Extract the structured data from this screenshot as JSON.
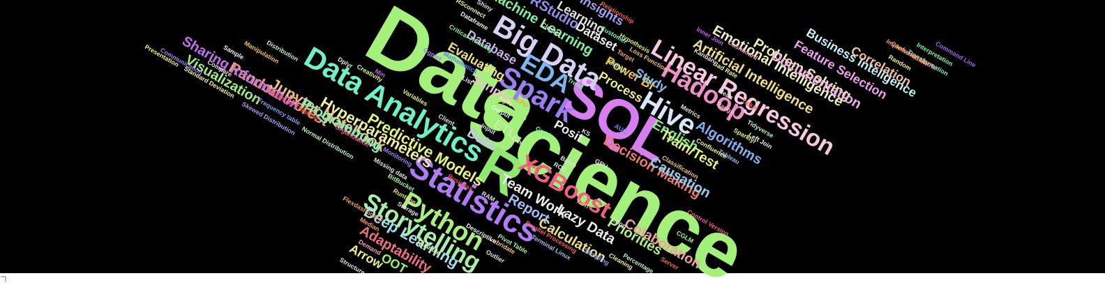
{
  "words": [
    "Data",
    "Science",
    "SQL",
    "R",
    "Statistics",
    "Data Analytics",
    "Big Data",
    "Spark",
    "EDA",
    "Hive",
    "Hadoop",
    "Linear Regression",
    "XGBoost",
    "Python",
    "Storytelling",
    "Decision Making",
    "Colaboration",
    "Priorities",
    "Lazy Data",
    "Calculation",
    "Report",
    "Team Work",
    "Predictive Models",
    "Hyperparameters",
    "Jupyter Notebook",
    "Random Forest",
    "Sharing Information",
    "Visualization",
    "Programming",
    "Deep Learning",
    "Adaptability",
    "Arrow",
    "OOT",
    "Machine Learning",
    "RStudio",
    "Learning",
    "Insights",
    "Dataset",
    "Database",
    "Evaluating",
    "Scripts",
    "ETL",
    "Posit",
    "Process",
    "Power BI",
    "Study",
    "Artificial Intelligence",
    "Emotional Intelligence",
    "Problem Solving",
    "Documentation",
    "Feature Selection",
    "Business Inteligence",
    "Correlation",
    "Algorithms",
    "English",
    "Train/Test",
    "Causation",
    "Data",
    "Relationship",
    "Hypothesis",
    "Customer",
    "Loss Function",
    "Kanban",
    "Dashboard",
    "Inner Join",
    "Bad Rate",
    "Mean",
    "Range",
    "Ticket",
    "Tidyverse",
    "Left Join",
    "Sparklyr",
    "Tableau",
    "Confluence",
    "Classification",
    "Metrics",
    "Control Version",
    "CGLM",
    "Server",
    "Percentage",
    "Cleaning",
    "Sampling",
    "Terminal Linux",
    "Parallel Processing",
    "Yarn",
    "Loop",
    "Pivot Table",
    "Outlier",
    "Lubridate",
    "Quantile",
    "Descriptive",
    "Median",
    "Demand",
    "Structure",
    "Flexdashboard",
    "Storage",
    "Runtime",
    "BitBucket",
    "Missing data",
    "Monitoring",
    "Organization",
    "Normal Distribution",
    "Skewed Distribution",
    "Frequency table",
    "Analytical Thinking",
    "Standard Deviation",
    "Communication",
    "Presentation",
    "Compare",
    "Sample",
    "Manipulation",
    "Distribution",
    "Dplyr",
    "Creativity",
    "Ggplot",
    "Variables",
    "Min",
    "List",
    "Mathematics",
    "Output",
    "Agile",
    "CPU",
    "Client",
    "Input",
    "Gini",
    "Graph",
    "KS",
    "AUC",
    "GPU",
    "Batch",
    "ROC",
    "Max",
    "Trend",
    "Github",
    "Target",
    "Critical Thinking",
    "Cluster",
    "Dataframe",
    "RSconnect",
    "Shiny",
    "Command Line",
    "Interpretation",
    "Transformation",
    "Confusion Matrix",
    "Implementation",
    "Random",
    "RAM",
    "Business"
  ]
}
